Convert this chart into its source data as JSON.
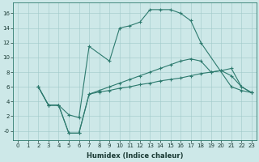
{
  "xlabel": "Humidex (Indice chaleur)",
  "bg_color": "#cde8e8",
  "line_color": "#2d7a6e",
  "xlim": [
    -0.5,
    23.5
  ],
  "ylim": [
    -1.2,
    17.5
  ],
  "xticks": [
    0,
    1,
    2,
    3,
    4,
    5,
    6,
    7,
    8,
    9,
    10,
    11,
    12,
    13,
    14,
    15,
    16,
    17,
    18,
    19,
    20,
    21,
    22,
    23
  ],
  "yticks": [
    0,
    2,
    4,
    6,
    8,
    10,
    12,
    14,
    16
  ],
  "ytick_labels": [
    "-0",
    "2",
    "4",
    "6",
    "8",
    "10",
    "12",
    "14",
    "16"
  ],
  "line1_x": [
    2,
    3,
    4,
    5,
    6,
    7,
    9,
    10,
    11,
    12,
    13,
    14,
    15,
    16,
    17,
    18,
    21,
    22,
    23
  ],
  "line1_y": [
    6,
    3.5,
    3.5,
    2.2,
    1.8,
    11.5,
    9.5,
    14.0,
    14.3,
    14.8,
    16.5,
    16.5,
    16.5,
    16.0,
    15.0,
    12.0,
    6.0,
    5.5,
    5.2
  ],
  "line2_x": [
    2,
    3,
    4,
    5,
    6,
    7,
    8,
    9,
    10,
    11,
    12,
    13,
    14,
    15,
    16,
    17,
    18,
    19,
    20,
    21,
    22,
    23
  ],
  "line2_y": [
    6,
    3.5,
    3.5,
    -0.3,
    -0.3,
    5.0,
    5.3,
    5.5,
    5.8,
    6.0,
    6.3,
    6.5,
    6.8,
    7.0,
    7.2,
    7.5,
    7.8,
    8.0,
    8.2,
    8.5,
    6.0,
    5.2
  ],
  "line3_x": [
    2,
    3,
    4,
    5,
    6,
    7,
    8,
    9,
    10,
    11,
    12,
    13,
    14,
    15,
    16,
    17,
    18,
    19,
    20,
    21,
    22,
    23
  ],
  "line3_y": [
    6,
    3.5,
    3.5,
    -0.3,
    -0.3,
    5.0,
    5.5,
    6.0,
    6.5,
    7.0,
    7.5,
    8.0,
    8.5,
    9.0,
    9.5,
    9.8,
    9.5,
    8.0,
    8.2,
    7.5,
    6.0,
    5.2
  ],
  "tick_fontsize": 5,
  "xlabel_fontsize": 6,
  "linewidth": 0.8,
  "markersize": 3
}
